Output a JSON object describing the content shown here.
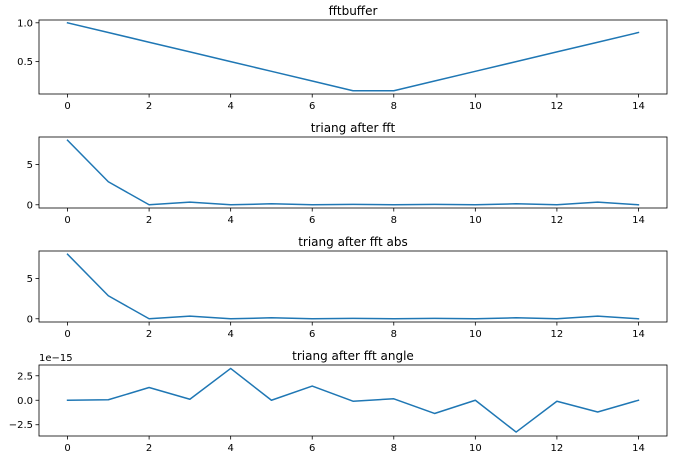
{
  "chart_data": [
    {
      "type": "line",
      "title": "fftbuffer",
      "xlabel": "",
      "ylabel": "",
      "xlim": [
        -0.7,
        14.7
      ],
      "ylim": [
        0.083,
        1.036
      ],
      "xticks": [
        0,
        2,
        4,
        6,
        8,
        10,
        12,
        14
      ],
      "yticks": [
        0.5,
        1.0
      ],
      "ytick_labels": [
        "0.5",
        "1.0"
      ],
      "grid": false,
      "color": "#1f77b4",
      "x": [
        0,
        1,
        2,
        3,
        4,
        5,
        6,
        7,
        8,
        9,
        10,
        11,
        12,
        13,
        14
      ],
      "values": [
        1.0,
        0.875,
        0.75,
        0.625,
        0.5,
        0.375,
        0.25,
        0.125,
        0.125,
        0.25,
        0.375,
        0.5,
        0.625,
        0.75,
        0.875
      ]
    },
    {
      "type": "line",
      "title": "triang after fft",
      "xlabel": "",
      "ylabel": "",
      "xlim": [
        -0.7,
        14.7
      ],
      "ylim": [
        -0.4,
        8.4
      ],
      "xticks": [
        0,
        2,
        4,
        6,
        8,
        10,
        12,
        14
      ],
      "yticks": [
        0,
        5
      ],
      "ytick_labels": [
        "0",
        "5"
      ],
      "grid": false,
      "color": "#1f77b4",
      "x": [
        0,
        1,
        2,
        3,
        4,
        5,
        6,
        7,
        8,
        9,
        10,
        11,
        12,
        13,
        14
      ],
      "values": [
        8.0,
        2.85,
        0.0,
        0.33,
        0.0,
        0.12,
        0.0,
        0.05,
        0.0,
        0.05,
        0.0,
        0.12,
        0.0,
        0.33,
        0.0
      ]
    },
    {
      "type": "line",
      "title": "triang after fft abs",
      "xlabel": "",
      "ylabel": "",
      "xlim": [
        -0.7,
        14.7
      ],
      "ylim": [
        -0.4,
        8.4
      ],
      "xticks": [
        0,
        2,
        4,
        6,
        8,
        10,
        12,
        14
      ],
      "yticks": [
        0,
        5
      ],
      "ytick_labels": [
        "0",
        "5"
      ],
      "grid": false,
      "color": "#1f77b4",
      "x": [
        0,
        1,
        2,
        3,
        4,
        5,
        6,
        7,
        8,
        9,
        10,
        11,
        12,
        13,
        14
      ],
      "values": [
        8.0,
        2.85,
        0.0,
        0.33,
        0.0,
        0.12,
        0.0,
        0.05,
        0.0,
        0.05,
        0.0,
        0.12,
        0.0,
        0.33,
        0.0
      ]
    },
    {
      "type": "line",
      "title": "triang after fft angle",
      "xlabel": "",
      "ylabel": "",
      "y_offset_label": "1e−15",
      "xlim": [
        -0.7,
        14.7
      ],
      "ylim": [
        -3.65,
        3.6
      ],
      "xticks": [
        0,
        2,
        4,
        6,
        8,
        10,
        12,
        14
      ],
      "yticks": [
        -2.5,
        0.0,
        2.5
      ],
      "ytick_labels": [
        "−2.5",
        "0.0",
        "2.5"
      ],
      "grid": false,
      "color": "#1f77b4",
      "x": [
        0,
        1,
        2,
        3,
        4,
        5,
        6,
        7,
        8,
        9,
        10,
        11,
        12,
        13,
        14
      ],
      "values": [
        0.0,
        0.05,
        1.3,
        0.1,
        3.25,
        0.0,
        1.45,
        -0.1,
        0.15,
        -1.35,
        0.0,
        -3.25,
        -0.1,
        -1.2,
        0.0
      ]
    }
  ]
}
